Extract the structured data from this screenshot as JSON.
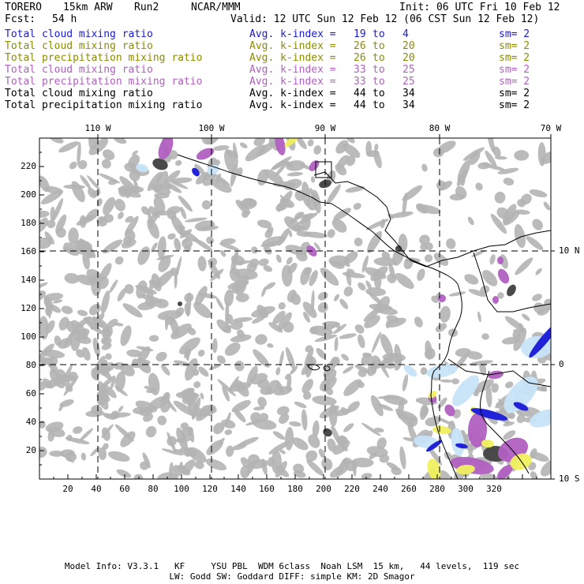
{
  "header": {
    "model": "TORERO",
    "resolution": "15km ARW",
    "run": "Run2",
    "org": "NCAR/MMM",
    "init": "Init: 06 UTC Fri 10 Feb 12",
    "fcst_label": "Fcst:",
    "fcst_value": "54 h",
    "valid": "Valid: 12 UTC Sun 12 Feb 12 (06 CST Sun 12 Feb 12)"
  },
  "legend": [
    {
      "field": "Total cloud mixing ratio",
      "kindex": "Avg. k-index =",
      "from": "19",
      "to_word": "to",
      "to": "4",
      "sm": "sm= 2",
      "color": "#1a1ad0"
    },
    {
      "field": "Total cloud mixing ratio",
      "kindex": "Avg. k-index =",
      "from": "26",
      "to_word": "to",
      "to": "20",
      "sm": "sm= 2",
      "color": "#8c8c00"
    },
    {
      "field": "Total precipitation mixing ratio",
      "kindex": "Avg. k-index =",
      "from": "26",
      "to_word": "to",
      "to": "20",
      "sm": "sm= 2",
      "color": "#8c8c00"
    },
    {
      "field": "Total cloud mixing ratio",
      "kindex": "Avg. k-index =",
      "from": "33",
      "to_word": "to",
      "to": "25",
      "sm": "sm= 2",
      "color": "#b060c0"
    },
    {
      "field": "Total precipitation mixing ratio",
      "kindex": "Avg. k-index =",
      "from": "33",
      "to_word": "to",
      "to": "25",
      "sm": "sm= 2",
      "color": "#b060c0"
    },
    {
      "field": "Total cloud mixing ratio",
      "kindex": "Avg. k-index =",
      "from": "44",
      "to_word": "to",
      "to": "34",
      "sm": "sm= 2",
      "color": "#000000"
    },
    {
      "field": "Total precipitation mixing ratio",
      "kindex": "Avg. k-index =",
      "from": "44",
      "to_word": "to",
      "to": "34",
      "sm": "sm= 2",
      "color": "#000000"
    }
  ],
  "map": {
    "lon_labels": [
      "110 W",
      "100 W",
      "90 W",
      "80 W",
      "70 W"
    ],
    "lat_labels": [
      "10 N",
      "0",
      "10 S"
    ],
    "x_ticks": [
      "20",
      "40",
      "60",
      "80",
      "100",
      "120",
      "140",
      "160",
      "180",
      "200",
      "220",
      "240",
      "260",
      "280",
      "300",
      "320"
    ],
    "y_ticks": [
      "220",
      "200",
      "180",
      "160",
      "140",
      "120",
      "100",
      "80",
      "60",
      "40",
      "20"
    ],
    "colors": {
      "cloud_gray": "#b4b4b4",
      "dark_gray": "#4a4a4a",
      "purple": "#b060c0",
      "yellow": "#f0f060",
      "light_blue": "#c8e4f8",
      "blue": "#2222d8"
    }
  },
  "footer": {
    "line1": "Model Info: V3.3.1   KF     YSU PBL  WDM 6class  Noah LSM  15 km,   44 levels,  119 sec",
    "line2": "LW: Godd SW: Goddard DIFF: simple KM: 2D Smagor"
  }
}
